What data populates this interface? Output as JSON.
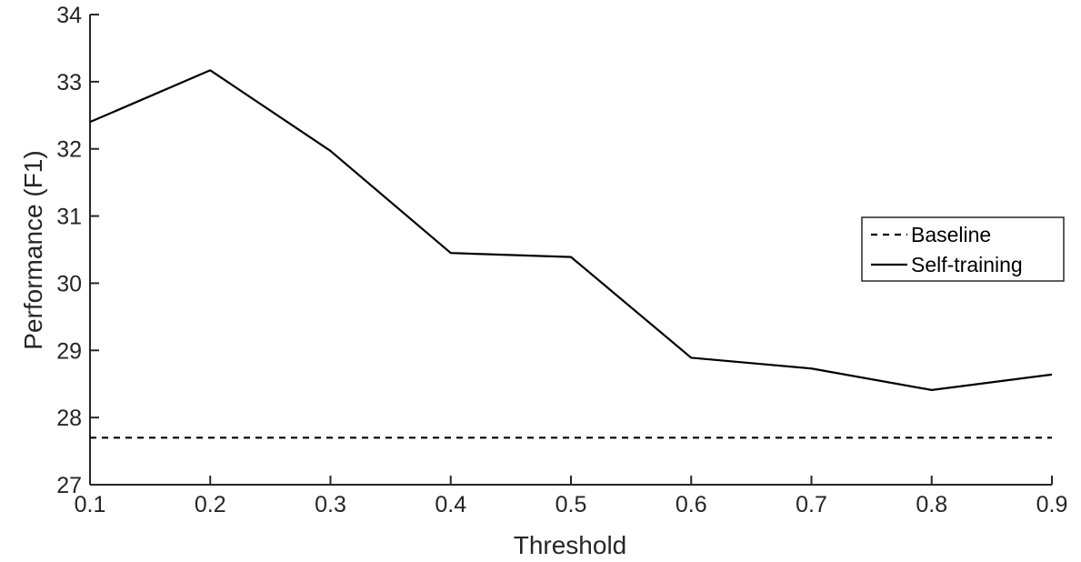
{
  "chart_data": {
    "type": "line",
    "title": "",
    "xlabel": "Threshold",
    "ylabel": "Performance (F1)",
    "x": [
      0.1,
      0.2,
      0.3,
      0.4,
      0.5,
      0.6,
      0.7,
      0.8,
      0.9
    ],
    "xlim": [
      0.1,
      0.9
    ],
    "ylim": [
      27,
      34
    ],
    "x_ticks": [
      "0.1",
      "0.2",
      "0.3",
      "0.4",
      "0.5",
      "0.6",
      "0.7",
      "0.8",
      "0.9"
    ],
    "y_ticks": [
      "27",
      "28",
      "29",
      "30",
      "31",
      "32",
      "33",
      "34"
    ],
    "grid": false,
    "legend_position": "right",
    "series": [
      {
        "name": "Baseline",
        "style": "dashed",
        "color": "#000000",
        "values": [
          27.7,
          27.7,
          27.7,
          27.7,
          27.7,
          27.7,
          27.7,
          27.7,
          27.7
        ]
      },
      {
        "name": "Self-training",
        "style": "solid",
        "color": "#000000",
        "values": [
          32.4,
          33.17,
          31.97,
          30.45,
          30.39,
          28.89,
          28.73,
          28.41,
          28.64
        ]
      }
    ]
  }
}
